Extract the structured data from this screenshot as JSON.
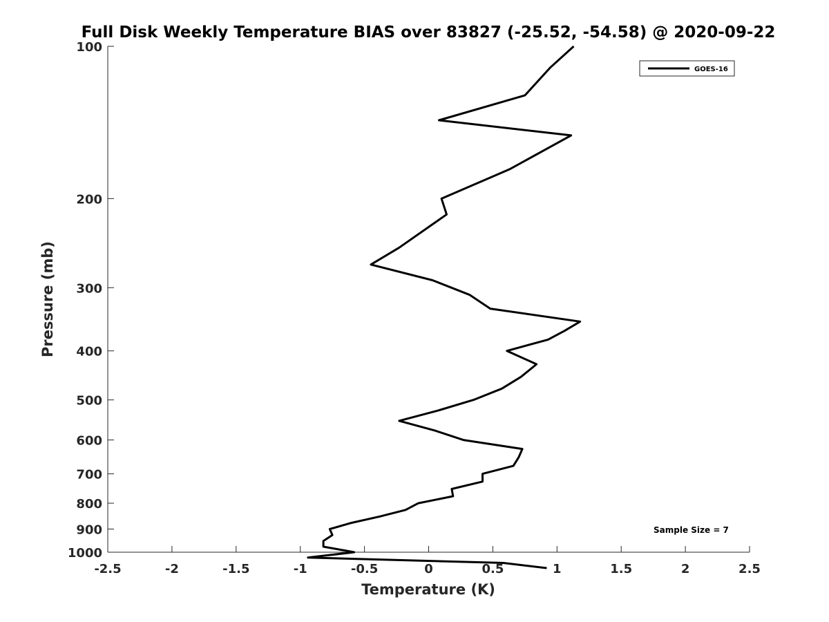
{
  "chart_data": {
    "type": "line",
    "title": "Full Disk Weekly Temperature BIAS over 83827 (-25.52, -54.58) @ 2020-09-22",
    "xlabel": "Temperature (K)",
    "ylabel": "Pressure (mb)",
    "xlim": [
      -2.5,
      2.5
    ],
    "ylim": [
      1000,
      100
    ],
    "y_scale": "log",
    "y_reversed": true,
    "xticks": [
      -2.5,
      -2,
      -1.5,
      -1,
      -0.5,
      0,
      0.5,
      1,
      1.5,
      2,
      2.5
    ],
    "xtick_labels": [
      "-2.5",
      "-2",
      "-1.5",
      "-1",
      "-0.5",
      "0",
      "0.5",
      "1",
      "1.5",
      "2",
      "2.5"
    ],
    "yticks": [
      100,
      200,
      300,
      400,
      500,
      600,
      700,
      800,
      900,
      1000
    ],
    "ytick_labels": [
      "100",
      "200",
      "300",
      "400",
      "500",
      "600",
      "700",
      "800",
      "900",
      "1000"
    ],
    "grid": false,
    "legend_position": "top-right",
    "series": [
      {
        "name": "GOES-16",
        "color": "#000000",
        "x": [
          1.13,
          0.95,
          0.75,
          0.08,
          1.11,
          0.63,
          0.1,
          0.14,
          -0.23,
          -0.45,
          0.03,
          0.32,
          0.48,
          1.18,
          1.06,
          0.93,
          0.61,
          0.84,
          0.72,
          0.57,
          0.35,
          0.07,
          -0.23,
          0.05,
          0.27,
          0.73,
          0.7,
          0.66,
          0.42,
          0.42,
          0.18,
          0.19,
          -0.08,
          -0.18,
          -0.38,
          -0.6,
          -0.77,
          -0.75,
          -0.82,
          -0.82,
          -0.58,
          -0.94,
          0.58,
          0.92
        ],
        "y": [
          100,
          110,
          125,
          140,
          150,
          175,
          200,
          215,
          250,
          270,
          290,
          310,
          330,
          350,
          365,
          380,
          400,
          425,
          450,
          475,
          500,
          525,
          550,
          575,
          600,
          625,
          650,
          675,
          700,
          725,
          750,
          775,
          800,
          825,
          850,
          875,
          900,
          925,
          950,
          975,
          1000,
          1025,
          1050,
          1075
        ]
      }
    ],
    "annotations": [
      "Sample Size = 7"
    ]
  }
}
